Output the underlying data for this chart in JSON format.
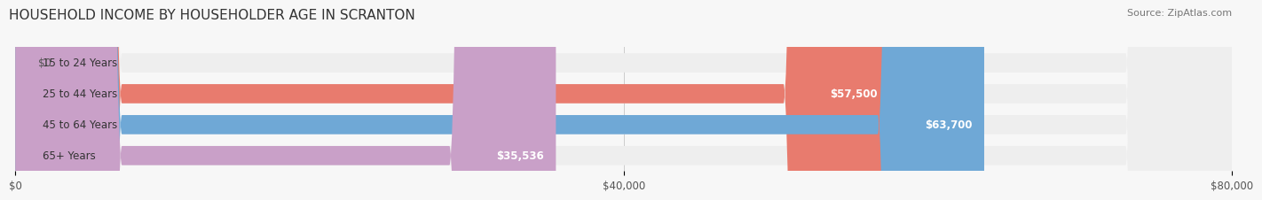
{
  "title": "HOUSEHOLD INCOME BY HOUSEHOLDER AGE IN SCRANTON",
  "source": "Source: ZipAtlas.com",
  "categories": [
    "15 to 24 Years",
    "25 to 44 Years",
    "45 to 64 Years",
    "65+ Years"
  ],
  "values": [
    0,
    57500,
    63700,
    35536
  ],
  "bar_colors": [
    "#f5d5a0",
    "#e87b6e",
    "#6fa8d6",
    "#c9a0c8"
  ],
  "bar_bg_color": "#eeeeee",
  "value_labels": [
    "$0",
    "$57,500",
    "$63,700",
    "$35,536"
  ],
  "xlim": [
    0,
    80000
  ],
  "xticks": [
    0,
    40000,
    80000
  ],
  "xtick_labels": [
    "$0",
    "$40,000",
    "$80,000"
  ],
  "title_fontsize": 11,
  "source_fontsize": 8,
  "label_fontsize": 8.5,
  "value_fontsize": 8.5,
  "bar_height": 0.62,
  "background_color": "#f7f7f7"
}
